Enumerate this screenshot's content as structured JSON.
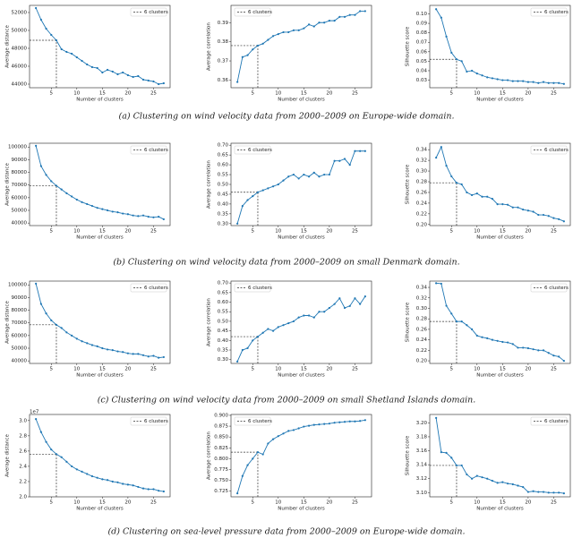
{
  "chart_data": [
    {
      "type": "line",
      "xlabel": "Number of clusters",
      "ylabel": "Average distance",
      "color": "#1f77b4",
      "legend": "upper right",
      "highlight": {
        "name": "6 clusters",
        "x": 6
      },
      "x": [
        2,
        3,
        4,
        5,
        6,
        7,
        8,
        9,
        10,
        11,
        12,
        13,
        14,
        15,
        16,
        17,
        18,
        19,
        20,
        21,
        22,
        23,
        24,
        25,
        26,
        27
      ],
      "values": [
        52500,
        51200,
        50200,
        49500,
        48900,
        47900,
        47600,
        47400,
        47000,
        46600,
        46200,
        45900,
        45800,
        45300,
        45600,
        45400,
        45100,
        45300,
        45000,
        44800,
        44900,
        44500,
        44400,
        44300,
        44000,
        44100
      ],
      "xlim": [
        0.75,
        28.25
      ],
      "xticks": [
        5,
        10,
        15,
        20,
        25
      ],
      "ylim": [
        43600,
        52800
      ],
      "yticks": [
        44000,
        46000,
        48000,
        50000,
        52000
      ]
    },
    {
      "type": "line",
      "xlabel": "Number of clusters",
      "ylabel": "Average correlation",
      "color": "#1f77b4",
      "legend": "upper left",
      "highlight": {
        "name": "6 clusters",
        "x": 6
      },
      "x": [
        2,
        3,
        4,
        5,
        6,
        7,
        8,
        9,
        10,
        11,
        12,
        13,
        14,
        15,
        16,
        17,
        18,
        19,
        20,
        21,
        22,
        23,
        24,
        25,
        26,
        27
      ],
      "values": [
        0.359,
        0.372,
        0.373,
        0.376,
        0.378,
        0.379,
        0.381,
        0.383,
        0.384,
        0.385,
        0.385,
        0.386,
        0.386,
        0.387,
        0.389,
        0.388,
        0.39,
        0.39,
        0.391,
        0.391,
        0.393,
        0.393,
        0.394,
        0.394,
        0.396,
        0.396
      ],
      "xlim": [
        0.75,
        28.25
      ],
      "xticks": [
        5,
        10,
        15,
        20,
        25
      ],
      "ylim": [
        0.356,
        0.399
      ],
      "yticks": [
        0.36,
        0.37,
        0.38,
        0.39
      ]
    },
    {
      "type": "line",
      "xlabel": "Number of clusters",
      "ylabel": "Silhouette score",
      "color": "#1f77b4",
      "legend": "upper right",
      "highlight": {
        "name": "6 clusters",
        "x": 6
      },
      "x": [
        2,
        3,
        4,
        5,
        6,
        7,
        8,
        9,
        10,
        11,
        12,
        13,
        14,
        15,
        16,
        17,
        18,
        19,
        20,
        21,
        22,
        23,
        24,
        25,
        26,
        27
      ],
      "values": [
        0.105,
        0.096,
        0.076,
        0.059,
        0.052,
        0.05,
        0.039,
        0.04,
        0.037,
        0.035,
        0.033,
        0.032,
        0.031,
        0.03,
        0.03,
        0.029,
        0.029,
        0.029,
        0.028,
        0.028,
        0.027,
        0.028,
        0.027,
        0.027,
        0.027,
        0.026
      ],
      "xlim": [
        0.75,
        28.25
      ],
      "xticks": [
        5,
        10,
        15,
        20,
        25
      ],
      "ylim": [
        0.022,
        0.109
      ],
      "yticks": [
        0.03,
        0.04,
        0.05,
        0.06,
        0.07,
        0.08,
        0.09,
        {
          "value": 0.1,
          "label": "0.10"
        }
      ]
    },
    {
      "type": "line",
      "xlabel": "Number of clusters",
      "ylabel": "Average distance",
      "color": "#1f77b4",
      "legend": "upper right",
      "highlight": {
        "name": "6 clusters",
        "x": 6
      },
      "x": [
        2,
        3,
        4,
        5,
        6,
        7,
        8,
        9,
        10,
        11,
        12,
        13,
        14,
        15,
        16,
        17,
        18,
        19,
        20,
        21,
        22,
        23,
        24,
        25,
        26,
        27
      ],
      "values": [
        101000,
        85000,
        78000,
        73000,
        69500,
        66500,
        63500,
        61000,
        58500,
        56500,
        55000,
        53500,
        52000,
        51000,
        50000,
        49000,
        48500,
        47500,
        47000,
        46000,
        45500,
        46000,
        45000,
        44500,
        45000,
        43000
      ],
      "xlim": [
        0.75,
        28.25
      ],
      "xticks": [
        5,
        10,
        15,
        20,
        25
      ],
      "ylim": [
        38000,
        103000
      ],
      "yticks": [
        40000,
        50000,
        60000,
        70000,
        80000,
        90000,
        100000
      ]
    },
    {
      "type": "line",
      "xlabel": "Number of clusters",
      "ylabel": "Average correlation",
      "color": "#1f77b4",
      "legend": "upper left",
      "highlight": {
        "name": "6 clusters",
        "x": 6
      },
      "x": [
        2,
        3,
        4,
        5,
        6,
        7,
        8,
        9,
        10,
        11,
        12,
        13,
        14,
        15,
        16,
        17,
        18,
        19,
        20,
        21,
        22,
        23,
        24,
        25,
        26,
        27
      ],
      "values": [
        0.3,
        0.39,
        0.42,
        0.44,
        0.46,
        0.47,
        0.48,
        0.49,
        0.5,
        0.52,
        0.54,
        0.55,
        0.53,
        0.55,
        0.54,
        0.56,
        0.54,
        0.55,
        0.55,
        0.62,
        0.62,
        0.63,
        0.6,
        0.67,
        0.67,
        0.67
      ],
      "xlim": [
        0.75,
        28.25
      ],
      "xticks": [
        5,
        10,
        15,
        20,
        25
      ],
      "ylim": [
        0.29,
        0.71
      ],
      "yticks": [
        {
          "value": 0.3,
          "label": "0.30"
        },
        0.35,
        {
          "value": 0.4,
          "label": "0.40"
        },
        0.45,
        {
          "value": 0.5,
          "label": "0.50"
        },
        0.55,
        {
          "value": 0.6,
          "label": "0.60"
        },
        0.65,
        {
          "value": 0.7,
          "label": "0.70"
        }
      ]
    },
    {
      "type": "line",
      "xlabel": "Number of clusters",
      "ylabel": "Silhouette score",
      "color": "#1f77b4",
      "legend": "upper right",
      "highlight": {
        "name": "6 clusters",
        "x": 6
      },
      "x": [
        2,
        3,
        4,
        5,
        6,
        7,
        8,
        9,
        10,
        11,
        12,
        13,
        14,
        15,
        16,
        17,
        18,
        19,
        20,
        21,
        22,
        23,
        24,
        25,
        26,
        27
      ],
      "values": [
        0.325,
        0.345,
        0.31,
        0.29,
        0.278,
        0.275,
        0.26,
        0.255,
        0.258,
        0.252,
        0.252,
        0.248,
        0.238,
        0.238,
        0.237,
        0.232,
        0.232,
        0.228,
        0.226,
        0.224,
        0.218,
        0.218,
        0.216,
        0.212,
        0.21,
        0.206
      ],
      "xlim": [
        0.75,
        28.25
      ],
      "xticks": [
        5,
        10,
        15,
        20,
        25
      ],
      "ylim": [
        0.198,
        0.352
      ],
      "yticks": [
        {
          "value": 0.2,
          "label": "0.20"
        },
        0.22,
        0.24,
        0.26,
        0.28,
        {
          "value": 0.3,
          "label": "0.30"
        },
        0.32,
        0.34
      ]
    },
    {
      "type": "line",
      "xlabel": "Number of clusters",
      "ylabel": "Average distance",
      "color": "#1f77b4",
      "legend": "upper right",
      "highlight": {
        "name": "6 clusters",
        "x": 6
      },
      "x": [
        2,
        3,
        4,
        5,
        6,
        7,
        8,
        9,
        10,
        11,
        12,
        13,
        14,
        15,
        16,
        17,
        18,
        19,
        20,
        21,
        22,
        23,
        24,
        25,
        26,
        27
      ],
      "values": [
        101000,
        85000,
        77500,
        72000,
        68500,
        66000,
        62500,
        60000,
        57500,
        55500,
        54000,
        52500,
        51500,
        50000,
        49000,
        48500,
        47500,
        47000,
        46000,
        45500,
        45500,
        44500,
        43500,
        44000,
        42500,
        43000
      ],
      "xlim": [
        0.75,
        28.25
      ],
      "xticks": [
        5,
        10,
        15,
        20,
        25
      ],
      "ylim": [
        38000,
        103000
      ],
      "yticks": [
        40000,
        50000,
        60000,
        70000,
        80000,
        90000,
        100000
      ]
    },
    {
      "type": "line",
      "xlabel": "Number of clusters",
      "ylabel": "Average correlation",
      "color": "#1f77b4",
      "legend": "upper left",
      "highlight": {
        "name": "6 clusters",
        "x": 6
      },
      "x": [
        2,
        3,
        4,
        5,
        6,
        7,
        8,
        9,
        10,
        11,
        12,
        13,
        14,
        15,
        16,
        17,
        18,
        19,
        20,
        21,
        22,
        23,
        24,
        25,
        26,
        27
      ],
      "values": [
        0.29,
        0.35,
        0.36,
        0.4,
        0.42,
        0.44,
        0.46,
        0.45,
        0.47,
        0.48,
        0.49,
        0.5,
        0.52,
        0.53,
        0.53,
        0.52,
        0.55,
        0.55,
        0.57,
        0.59,
        0.62,
        0.57,
        0.58,
        0.62,
        0.59,
        0.63
      ],
      "xlim": [
        0.75,
        28.25
      ],
      "xticks": [
        5,
        10,
        15,
        20,
        25
      ],
      "ylim": [
        0.28,
        0.71
      ],
      "yticks": [
        {
          "value": 0.3,
          "label": "0.30"
        },
        0.35,
        {
          "value": 0.4,
          "label": "0.40"
        },
        0.45,
        {
          "value": 0.5,
          "label": "0.50"
        },
        0.55,
        {
          "value": 0.6,
          "label": "0.60"
        },
        0.65,
        {
          "value": 0.7,
          "label": "0.70"
        }
      ]
    },
    {
      "type": "line",
      "xlabel": "Number of clusters",
      "ylabel": "Silhouette score",
      "color": "#1f77b4",
      "legend": "upper right",
      "highlight": {
        "name": "6 clusters",
        "x": 6
      },
      "x": [
        2,
        3,
        4,
        5,
        6,
        7,
        8,
        9,
        10,
        11,
        12,
        13,
        14,
        15,
        16,
        17,
        18,
        19,
        20,
        21,
        22,
        23,
        24,
        25,
        26,
        27
      ],
      "values": [
        0.348,
        0.347,
        0.305,
        0.29,
        0.275,
        0.275,
        0.268,
        0.26,
        0.248,
        0.245,
        0.243,
        0.24,
        0.238,
        0.236,
        0.235,
        0.232,
        0.225,
        0.225,
        0.224,
        0.222,
        0.22,
        0.22,
        0.215,
        0.21,
        0.208,
        0.2
      ],
      "xlim": [
        0.75,
        28.25
      ],
      "xticks": [
        5,
        10,
        15,
        20,
        25
      ],
      "ylim": [
        0.195,
        0.352
      ],
      "yticks": [
        {
          "value": 0.2,
          "label": "0.20"
        },
        0.22,
        0.24,
        0.26,
        0.28,
        {
          "value": 0.3,
          "label": "0.30"
        },
        0.32,
        0.34
      ]
    },
    {
      "type": "line",
      "xlabel": "Number of clusters",
      "ylabel": "Average distance",
      "yoffset_label": "1e7",
      "color": "#1f77b4",
      "legend": "upper right",
      "highlight": {
        "name": "6 clusters",
        "x": 6
      },
      "x": [
        2,
        3,
        4,
        5,
        6,
        7,
        8,
        9,
        10,
        11,
        12,
        13,
        14,
        15,
        16,
        17,
        18,
        19,
        20,
        21,
        22,
        23,
        24,
        25,
        26,
        27
      ],
      "values": [
        3.02,
        2.85,
        2.72,
        2.62,
        2.56,
        2.52,
        2.46,
        2.4,
        2.36,
        2.33,
        2.3,
        2.27,
        2.25,
        2.23,
        2.22,
        2.2,
        2.19,
        2.17,
        2.16,
        2.15,
        2.13,
        2.11,
        2.1,
        2.1,
        2.08,
        2.07
      ],
      "xlim": [
        0.75,
        28.25
      ],
      "xticks": [
        5,
        10,
        15,
        20,
        25
      ],
      "ylim": [
        2.0,
        3.08
      ],
      "yticks": [
        {
          "value": 2,
          "label": "2.0"
        },
        2.2,
        2.4,
        2.6,
        2.8,
        {
          "value": 3,
          "label": "3.0"
        }
      ]
    },
    {
      "type": "line",
      "xlabel": "Number of clusters",
      "ylabel": "Average correlation",
      "color": "#1f77b4",
      "legend": "upper left",
      "highlight": {
        "name": "6 clusters",
        "x": 6
      },
      "x": [
        2,
        3,
        4,
        5,
        6,
        7,
        8,
        9,
        10,
        11,
        12,
        13,
        14,
        15,
        16,
        17,
        18,
        19,
        20,
        21,
        22,
        23,
        24,
        25,
        26,
        27
      ],
      "values": [
        0.72,
        0.76,
        0.785,
        0.8,
        0.815,
        0.81,
        0.835,
        0.845,
        0.852,
        0.858,
        0.864,
        0.866,
        0.87,
        0.874,
        0.876,
        0.878,
        0.879,
        0.88,
        0.881,
        0.883,
        0.884,
        0.885,
        0.886,
        0.886,
        0.887,
        0.889
      ],
      "xlim": [
        0.75,
        28.25
      ],
      "xticks": [
        5,
        10,
        15,
        20,
        25
      ],
      "ylim": [
        0.712,
        0.902
      ],
      "yticks": [
        0.725,
        {
          "value": 0.75,
          "label": "0.750"
        },
        0.775,
        {
          "value": 0.8,
          "label": "0.800"
        },
        0.825,
        {
          "value": 0.85,
          "label": "0.850"
        },
        0.875,
        {
          "value": 0.9,
          "label": "0.900"
        }
      ]
    },
    {
      "type": "line",
      "xlabel": "Number of clusters",
      "ylabel": "Silhouette score",
      "color": "#1f77b4",
      "legend": "upper right",
      "highlight": {
        "name": "6 clusters",
        "x": 6
      },
      "x": [
        2,
        3,
        4,
        5,
        6,
        7,
        8,
        9,
        10,
        11,
        12,
        13,
        14,
        15,
        16,
        17,
        18,
        19,
        20,
        21,
        22,
        23,
        24,
        25,
        26,
        27
      ],
      "values": [
        3.207,
        3.158,
        3.157,
        3.15,
        3.139,
        3.139,
        3.126,
        3.12,
        3.124,
        3.122,
        3.12,
        3.117,
        3.114,
        3.115,
        3.113,
        3.112,
        3.11,
        3.108,
        3.101,
        3.102,
        3.101,
        3.101,
        3.1,
        3.1,
        3.1,
        3.099
      ],
      "xlim": [
        0.75,
        28.25
      ],
      "xticks": [
        5,
        10,
        15,
        20,
        25
      ],
      "ylim": [
        3.094,
        3.212
      ],
      "yticks": [
        {
          "value": 3.1,
          "label": "3.10"
        },
        3.12,
        3.14,
        3.16,
        3.18,
        {
          "value": 3.2,
          "label": "3.20"
        }
      ]
    }
  ],
  "captions": [
    "(a) Clustering on wind velocity data from 2000–2009 on Europe-wide domain.",
    "(b) Clustering on wind velocity data from 2000–2009 on small Denmark domain.",
    "(c) Clustering on wind velocity data from 2000–2009 on small Shetland Islands domain.",
    "(d) Clustering on sea-level pressure data from 2000–2009 on Europe-wide domain."
  ]
}
